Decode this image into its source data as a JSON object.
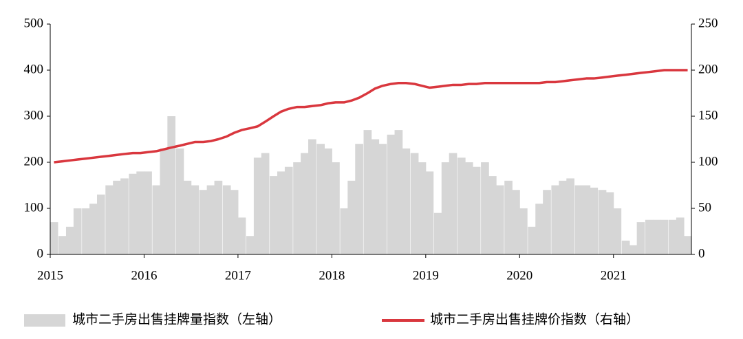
{
  "chart_data": {
    "type": "combo",
    "x": [
      2015.04,
      2015.13,
      2015.21,
      2015.29,
      2015.38,
      2015.46,
      2015.54,
      2015.63,
      2015.71,
      2015.79,
      2015.88,
      2015.96,
      2016.04,
      2016.13,
      2016.21,
      2016.29,
      2016.38,
      2016.46,
      2016.54,
      2016.63,
      2016.71,
      2016.79,
      2016.88,
      2016.96,
      2017.04,
      2017.13,
      2017.21,
      2017.29,
      2017.38,
      2017.46,
      2017.54,
      2017.63,
      2017.71,
      2017.79,
      2017.88,
      2017.96,
      2018.04,
      2018.13,
      2018.21,
      2018.29,
      2018.38,
      2018.46,
      2018.54,
      2018.63,
      2018.71,
      2018.79,
      2018.88,
      2018.96,
      2019.04,
      2019.13,
      2019.21,
      2019.29,
      2019.38,
      2019.46,
      2019.54,
      2019.63,
      2019.71,
      2019.79,
      2019.88,
      2019.96,
      2020.04,
      2020.13,
      2020.21,
      2020.29,
      2020.38,
      2020.46,
      2020.54,
      2020.63,
      2020.71,
      2020.79,
      2020.88,
      2020.96,
      2021.04,
      2021.13,
      2021.21,
      2021.29,
      2021.38,
      2021.46,
      2021.54,
      2021.63,
      2021.71,
      2021.79
    ],
    "series": [
      {
        "name": "城市二手房出售挂牌量指数（左轴）",
        "type": "bar",
        "color": "#d6d6d6",
        "values": [
          70,
          40,
          60,
          100,
          100,
          110,
          130,
          150,
          160,
          165,
          175,
          180,
          180,
          150,
          230,
          300,
          230,
          160,
          150,
          140,
          150,
          160,
          150,
          140,
          80,
          40,
          210,
          220,
          170,
          180,
          190,
          200,
          220,
          250,
          240,
          230,
          200,
          100,
          160,
          240,
          270,
          250,
          240,
          260,
          270,
          230,
          220,
          200,
          180,
          90,
          200,
          220,
          210,
          200,
          190,
          200,
          170,
          150,
          160,
          140,
          100,
          60,
          110,
          140,
          150,
          160,
          165,
          150,
          150,
          145,
          140,
          135,
          100,
          30,
          20,
          70,
          75,
          75,
          75,
          75,
          80,
          40
        ]
      },
      {
        "name": "城市二手房出售挂牌价指数（右轴）",
        "type": "line",
        "axis": "y2",
        "color": "#d9373e",
        "values": [
          100,
          101,
          102,
          103,
          104,
          105,
          106,
          107,
          108,
          109,
          110,
          110,
          111,
          112,
          114,
          116,
          118,
          120,
          122,
          122,
          123,
          125,
          128,
          132,
          135,
          137,
          139,
          144,
          150,
          155,
          158,
          160,
          160,
          161,
          162,
          164,
          165,
          165,
          167,
          170,
          175,
          180,
          183,
          185,
          186,
          186,
          185,
          183,
          181,
          182,
          183,
          184,
          184,
          185,
          185,
          186,
          186,
          186,
          186,
          186,
          186,
          186,
          186,
          187,
          187,
          188,
          189,
          190,
          191,
          191,
          192,
          193,
          194,
          195,
          196,
          197,
          198,
          199,
          200,
          200,
          200,
          200
        ]
      }
    ],
    "xlim": [
      2015,
      2021.83
    ],
    "xticks": [
      2015,
      2016,
      2017,
      2018,
      2019,
      2020,
      2021
    ],
    "ylim": [
      0,
      500
    ],
    "yticks": [
      0,
      100,
      200,
      300,
      400,
      500
    ],
    "y2lim": [
      0,
      250
    ],
    "y2ticks": [
      0,
      50,
      100,
      150,
      200,
      250
    ]
  }
}
